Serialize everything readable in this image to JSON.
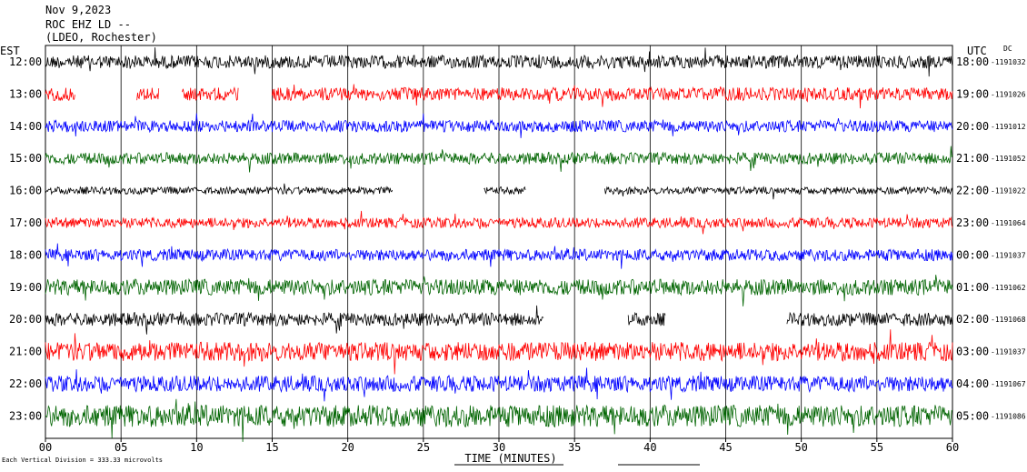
{
  "header": {
    "date": "Nov 9,2023",
    "station": "ROC EHZ LD --",
    "network": "(LDEO, Rochester)"
  },
  "left_zone": "EST",
  "right_zone": "UTC",
  "dc_label": "DC",
  "footer": {
    "scale_note": "Each Vertical Division = 333.33 microvolts",
    "xlabel": "TIME (MINUTES)"
  },
  "chart_data": {
    "type": "line",
    "title": "ROC EHZ LD --",
    "xlabel": "TIME (MINUTES)",
    "xlim": [
      0,
      60
    ],
    "x_ticks": [
      "00",
      "05",
      "10",
      "15",
      "20",
      "25",
      "30",
      "35",
      "40",
      "45",
      "50",
      "55",
      "60"
    ],
    "x_tick_values": [
      0,
      5,
      10,
      15,
      20,
      25,
      30,
      35,
      40,
      45,
      50,
      55,
      60
    ],
    "grid": "vertical lines every 5 minutes",
    "colors": [
      "#000000",
      "#ff0000",
      "#0000ff",
      "#006400"
    ],
    "rows": [
      {
        "est": "12:00",
        "utc": "18:00",
        "dc": "-1191032",
        "color": "#000000",
        "amp": 9,
        "gaps": []
      },
      {
        "est": "13:00",
        "utc": "19:00",
        "dc": "-1191026",
        "color": "#ff0000",
        "amp": 9,
        "gaps": [
          [
            2,
            6
          ],
          [
            7.5,
            9
          ],
          [
            12.8,
            15
          ]
        ]
      },
      {
        "est": "14:00",
        "utc": "20:00",
        "dc": "-1191012",
        "color": "#0000ff",
        "amp": 8,
        "gaps": []
      },
      {
        "est": "15:00",
        "utc": "21:00",
        "dc": "-1191052",
        "color": "#006400",
        "amp": 8,
        "gaps": []
      },
      {
        "est": "16:00",
        "utc": "22:00",
        "dc": "-1191022",
        "color": "#000000",
        "amp": 5,
        "gaps": [
          [
            23,
            29
          ],
          [
            31.8,
            37
          ]
        ]
      },
      {
        "est": "17:00",
        "utc": "23:00",
        "dc": "-1191064",
        "color": "#ff0000",
        "amp": 7,
        "gaps": []
      },
      {
        "est": "18:00",
        "utc": "00:00",
        "dc": "-1191037",
        "color": "#0000ff",
        "amp": 8,
        "gaps": []
      },
      {
        "est": "19:00",
        "utc": "01:00",
        "dc": "-1191062",
        "color": "#006400",
        "amp": 11,
        "gaps": []
      },
      {
        "est": "20:00",
        "utc": "02:00",
        "dc": "-1191068",
        "color": "#000000",
        "amp": 9,
        "gaps": [
          [
            33,
            38.5
          ],
          [
            41,
            49
          ]
        ]
      },
      {
        "est": "21:00",
        "utc": "03:00",
        "dc": "-1191037",
        "color": "#ff0000",
        "amp": 13,
        "gaps": []
      },
      {
        "est": "22:00",
        "utc": "04:00",
        "dc": "-1191067",
        "color": "#0000ff",
        "amp": 11,
        "gaps": []
      },
      {
        "est": "23:00",
        "utc": "05:00",
        "dc": "-1191086",
        "color": "#006400",
        "amp": 15,
        "gaps": []
      }
    ]
  }
}
